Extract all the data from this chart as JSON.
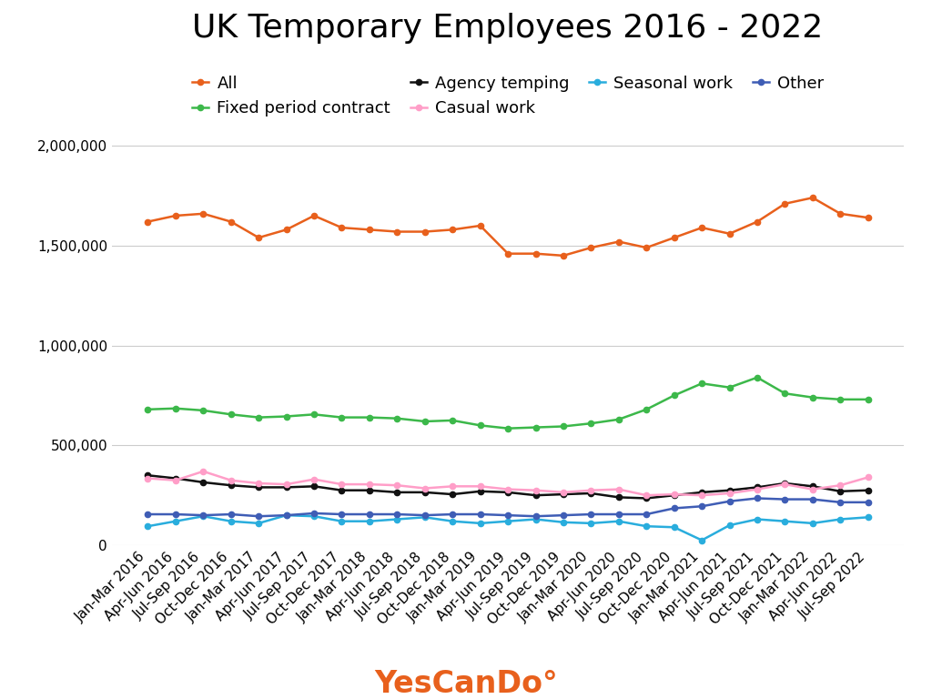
{
  "title": "UK Temporary Employees 2016 - 2022",
  "watermark": "YesCanDo°",
  "x_labels": [
    "Jan-Mar 2016",
    "Apr-Jun 2016",
    "Jul-Sep 2016",
    "Oct-Dec 2016",
    "Jan-Mar 2017",
    "Apr-Jun 2017",
    "Jul-Sep 2017",
    "Oct-Dec 2017",
    "Jan-Mar 2018",
    "Apr-Jun 2018",
    "Jul-Sep 2018",
    "Oct-Dec 2018",
    "Jan-Mar 2019",
    "Apr-Jun 2019",
    "Jul-Sep 2019",
    "Oct-Dec 2019",
    "Jan-Mar 2020",
    "Apr-Jun 2020",
    "Jul-Sep 2020",
    "Oct-Dec 2020",
    "Jan-Mar 2021",
    "Apr-Jun 2021",
    "Jul-Sep 2021",
    "Oct-Dec 2021",
    "Jan-Mar 2022",
    "Apr-Jun 2022",
    "Jul-Sep 2022"
  ],
  "series": [
    {
      "name": "All",
      "color": "#E8601C",
      "values": [
        1620000,
        1650000,
        1660000,
        1620000,
        1540000,
        1580000,
        1650000,
        1590000,
        1580000,
        1570000,
        1570000,
        1580000,
        1600000,
        1460000,
        1460000,
        1450000,
        1490000,
        1520000,
        1490000,
        1540000,
        1590000,
        1560000,
        1620000,
        1710000,
        1740000,
        1660000,
        1640000
      ]
    },
    {
      "name": "Fixed period contract",
      "color": "#3CB84A",
      "values": [
        680000,
        685000,
        675000,
        655000,
        640000,
        645000,
        655000,
        640000,
        640000,
        635000,
        620000,
        625000,
        600000,
        585000,
        590000,
        595000,
        610000,
        630000,
        680000,
        750000,
        810000,
        790000,
        840000,
        760000,
        740000,
        730000,
        730000
      ]
    },
    {
      "name": "Agency temping",
      "color": "#111111",
      "values": [
        350000,
        335000,
        315000,
        300000,
        290000,
        290000,
        295000,
        275000,
        275000,
        265000,
        265000,
        255000,
        270000,
        265000,
        250000,
        255000,
        260000,
        240000,
        235000,
        250000,
        265000,
        275000,
        290000,
        310000,
        295000,
        270000,
        275000
      ]
    },
    {
      "name": "Casual work",
      "color": "#FF9EC8",
      "values": [
        335000,
        325000,
        370000,
        325000,
        310000,
        305000,
        330000,
        305000,
        305000,
        300000,
        285000,
        295000,
        295000,
        280000,
        275000,
        265000,
        275000,
        280000,
        250000,
        255000,
        250000,
        260000,
        280000,
        305000,
        280000,
        300000,
        340000
      ]
    },
    {
      "name": "Seasonal work",
      "color": "#29ADDD",
      "values": [
        95000,
        120000,
        145000,
        120000,
        110000,
        150000,
        145000,
        120000,
        120000,
        130000,
        140000,
        120000,
        110000,
        120000,
        130000,
        115000,
        110000,
        120000,
        95000,
        90000,
        25000,
        100000,
        130000,
        120000,
        110000,
        130000,
        140000
      ]
    },
    {
      "name": "Other",
      "color": "#3F5DB5",
      "values": [
        155000,
        155000,
        150000,
        155000,
        145000,
        150000,
        160000,
        155000,
        155000,
        155000,
        150000,
        155000,
        155000,
        150000,
        145000,
        150000,
        155000,
        155000,
        155000,
        185000,
        195000,
        220000,
        235000,
        230000,
        230000,
        215000,
        215000
      ]
    }
  ],
  "ylim": [
    0,
    2100000
  ],
  "yticks": [
    0,
    500000,
    1000000,
    1500000,
    2000000
  ],
  "background_color": "#ffffff",
  "title_fontsize": 26,
  "legend_fontsize": 13,
  "tick_fontsize": 11,
  "watermark_color": "#E8601C",
  "watermark_fontsize": 24
}
